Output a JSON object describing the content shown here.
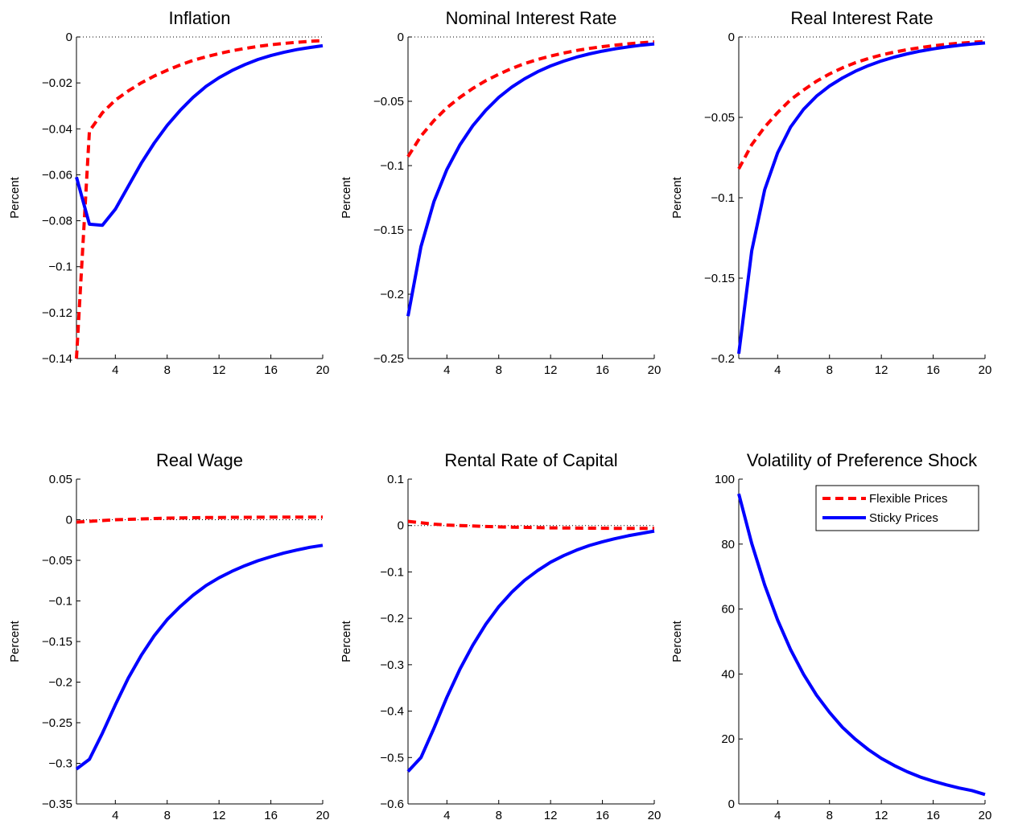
{
  "figure": {
    "legend": {
      "placement": "top-right",
      "panel_index": 5,
      "entries": [
        {
          "name": "Flexible Prices",
          "color": "#ff0000",
          "style": "dashed"
        },
        {
          "name": "Sticky Prices",
          "color": "#0000ff",
          "style": "solid"
        }
      ]
    }
  },
  "chart_data": [
    {
      "type": "line",
      "title": "Inflation",
      "xlabel": "",
      "ylabel": "Percent",
      "xlim": [
        1,
        20
      ],
      "ylim": [
        -0.14,
        0
      ],
      "xticks": [
        4,
        8,
        12,
        16,
        20
      ],
      "xtick_labels": [
        "4",
        "8",
        "12",
        "16",
        "20"
      ],
      "yticks": [
        0,
        -0.02,
        -0.04,
        -0.06,
        -0.08,
        -0.1,
        -0.12,
        -0.14
      ],
      "ytick_labels": [
        "0",
        "−0.02",
        "−0.04",
        "−0.06",
        "−0.08",
        "−0.1",
        "−0.12",
        "−0.14"
      ],
      "zero_line": true,
      "x": [
        1,
        2,
        3,
        4,
        5,
        6,
        7,
        8,
        9,
        10,
        11,
        12,
        13,
        14,
        15,
        16,
        17,
        18,
        19,
        20
      ],
      "series": [
        {
          "name": "Flexible Prices",
          "color": "#ff0000",
          "style": "dashed",
          "values": [
            -0.14,
            -0.041,
            -0.033,
            -0.0275,
            -0.0235,
            -0.02,
            -0.017,
            -0.0145,
            -0.0122,
            -0.0102,
            -0.0086,
            -0.0072,
            -0.006,
            -0.005,
            -0.0041,
            -0.0034,
            -0.0028,
            -0.0023,
            -0.0019,
            -0.0016
          ]
        },
        {
          "name": "Sticky Prices",
          "color": "#0000ff",
          "style": "solid",
          "values": [
            -0.061,
            -0.0815,
            -0.082,
            -0.075,
            -0.065,
            -0.055,
            -0.0462,
            -0.0385,
            -0.032,
            -0.0263,
            -0.0215,
            -0.0177,
            -0.0146,
            -0.012,
            -0.0098,
            -0.0081,
            -0.0067,
            -0.0055,
            -0.0046,
            -0.0038
          ]
        }
      ]
    },
    {
      "type": "line",
      "title": "Nominal Interest Rate",
      "xlabel": "",
      "ylabel": "Percent",
      "xlim": [
        1,
        20
      ],
      "ylim": [
        -0.25,
        0
      ],
      "xticks": [
        4,
        8,
        12,
        16,
        20
      ],
      "xtick_labels": [
        "4",
        "8",
        "12",
        "16",
        "20"
      ],
      "yticks": [
        0,
        -0.05,
        -0.1,
        -0.15,
        -0.2,
        -0.25
      ],
      "ytick_labels": [
        "0",
        "−0.05",
        "−0.1",
        "−0.15",
        "−0.2",
        "−0.25"
      ],
      "zero_line": true,
      "x": [
        1,
        2,
        3,
        4,
        5,
        6,
        7,
        8,
        9,
        10,
        11,
        12,
        13,
        14,
        15,
        16,
        17,
        18,
        19,
        20
      ],
      "series": [
        {
          "name": "Flexible Prices",
          "color": "#ff0000",
          "style": "dashed",
          "values": [
            -0.093,
            -0.077,
            -0.065,
            -0.055,
            -0.047,
            -0.04,
            -0.034,
            -0.029,
            -0.0245,
            -0.0207,
            -0.0175,
            -0.0148,
            -0.0125,
            -0.0105,
            -0.0089,
            -0.0075,
            -0.0063,
            -0.0053,
            -0.0045,
            -0.0038
          ]
        },
        {
          "name": "Sticky Prices",
          "color": "#0000ff",
          "style": "solid",
          "values": [
            -0.217,
            -0.163,
            -0.128,
            -0.103,
            -0.084,
            -0.069,
            -0.057,
            -0.047,
            -0.039,
            -0.0325,
            -0.027,
            -0.0225,
            -0.0188,
            -0.0157,
            -0.0131,
            -0.011,
            -0.0092,
            -0.0077,
            -0.0064,
            -0.0054
          ]
        }
      ]
    },
    {
      "type": "line",
      "title": "Real Interest Rate",
      "xlabel": "",
      "ylabel": "Percent",
      "xlim": [
        1,
        20
      ],
      "ylim": [
        -0.2,
        0
      ],
      "xticks": [
        4,
        8,
        12,
        16,
        20
      ],
      "xtick_labels": [
        "4",
        "8",
        "12",
        "16",
        "20"
      ],
      "yticks": [
        0,
        -0.05,
        -0.1,
        -0.15,
        -0.2
      ],
      "ytick_labels": [
        "0",
        "−0.05",
        "−0.1",
        "−0.15",
        "−0.2"
      ],
      "zero_line": true,
      "x": [
        1,
        2,
        3,
        4,
        5,
        6,
        7,
        8,
        9,
        10,
        11,
        12,
        13,
        14,
        15,
        16,
        17,
        18,
        19,
        20
      ],
      "series": [
        {
          "name": "Flexible Prices",
          "color": "#ff0000",
          "style": "dashed",
          "values": [
            -0.082,
            -0.067,
            -0.056,
            -0.047,
            -0.039,
            -0.033,
            -0.0275,
            -0.023,
            -0.0192,
            -0.016,
            -0.0134,
            -0.0112,
            -0.0094,
            -0.0079,
            -0.0066,
            -0.0055,
            -0.0046,
            -0.0039,
            -0.0033,
            -0.0028
          ]
        },
        {
          "name": "Sticky Prices",
          "color": "#0000ff",
          "style": "solid",
          "values": [
            -0.197,
            -0.133,
            -0.095,
            -0.072,
            -0.056,
            -0.045,
            -0.0368,
            -0.0305,
            -0.0255,
            -0.0213,
            -0.0178,
            -0.0149,
            -0.0125,
            -0.0105,
            -0.0088,
            -0.0074,
            -0.0062,
            -0.0052,
            -0.0044,
            -0.0037
          ]
        }
      ]
    },
    {
      "type": "line",
      "title": "Real Wage",
      "xlabel": "",
      "ylabel": "Percent",
      "xlim": [
        1,
        20
      ],
      "ylim": [
        -0.35,
        0.05
      ],
      "xticks": [
        4,
        8,
        12,
        16,
        20
      ],
      "xtick_labels": [
        "4",
        "8",
        "12",
        "16",
        "20"
      ],
      "yticks": [
        0.05,
        0,
        -0.05,
        -0.1,
        -0.15,
        -0.2,
        -0.25,
        -0.3,
        -0.35
      ],
      "ytick_labels": [
        "0.05",
        "0",
        "−0.05",
        "−0.1",
        "−0.15",
        "−0.2",
        "−0.25",
        "−0.3",
        "−0.35"
      ],
      "zero_line": true,
      "x": [
        1,
        2,
        3,
        4,
        5,
        6,
        7,
        8,
        9,
        10,
        11,
        12,
        13,
        14,
        15,
        16,
        17,
        18,
        19,
        20
      ],
      "series": [
        {
          "name": "Flexible Prices",
          "color": "#ff0000",
          "style": "dashed",
          "values": [
            -0.003,
            -0.002,
            -0.001,
            0,
            0.0005,
            0.001,
            0.0015,
            0.002,
            0.0022,
            0.0025,
            0.0027,
            0.0028,
            0.003,
            0.003,
            0.0031,
            0.0032,
            0.0032,
            0.0033,
            0.0033,
            0.0033
          ]
        },
        {
          "name": "Sticky Prices",
          "color": "#0000ff",
          "style": "solid",
          "values": [
            -0.307,
            -0.295,
            -0.263,
            -0.228,
            -0.195,
            -0.167,
            -0.143,
            -0.123,
            -0.107,
            -0.093,
            -0.081,
            -0.0715,
            -0.0635,
            -0.0565,
            -0.0505,
            -0.0455,
            -0.041,
            -0.0373,
            -0.034,
            -0.0315
          ]
        }
      ]
    },
    {
      "type": "line",
      "title": "Rental Rate of Capital",
      "xlabel": "",
      "ylabel": "Percent",
      "xlim": [
        1,
        20
      ],
      "ylim": [
        -0.6,
        0.1
      ],
      "xticks": [
        4,
        8,
        12,
        16,
        20
      ],
      "xtick_labels": [
        "4",
        "8",
        "12",
        "16",
        "20"
      ],
      "yticks": [
        0.1,
        0,
        -0.1,
        -0.2,
        -0.3,
        -0.4,
        -0.5,
        -0.6
      ],
      "ytick_labels": [
        "0.1",
        "0",
        "−0.1",
        "−0.2",
        "−0.3",
        "−0.4",
        "−0.5",
        "−0.6"
      ],
      "zero_line": true,
      "x": [
        1,
        2,
        3,
        4,
        5,
        6,
        7,
        8,
        9,
        10,
        11,
        12,
        13,
        14,
        15,
        16,
        17,
        18,
        19,
        20
      ],
      "series": [
        {
          "name": "Flexible Prices",
          "color": "#ff0000",
          "style": "dashed",
          "values": [
            0.009,
            0.006,
            0.003,
            0.001,
            0,
            -0.001,
            -0.002,
            -0.003,
            -0.0035,
            -0.004,
            -0.0045,
            -0.005,
            -0.0052,
            -0.0055,
            -0.0057,
            -0.0058,
            -0.006,
            -0.006,
            -0.006,
            -0.006
          ]
        },
        {
          "name": "Sticky Prices",
          "color": "#0000ff",
          "style": "solid",
          "values": [
            -0.53,
            -0.5,
            -0.437,
            -0.37,
            -0.31,
            -0.258,
            -0.213,
            -0.175,
            -0.144,
            -0.118,
            -0.097,
            -0.079,
            -0.065,
            -0.053,
            -0.043,
            -0.035,
            -0.028,
            -0.022,
            -0.017,
            -0.012
          ]
        }
      ]
    },
    {
      "type": "line",
      "title": "Volatility of Preference Shock",
      "xlabel": "",
      "ylabel": "Percent",
      "xlim": [
        1,
        20
      ],
      "ylim": [
        0,
        100
      ],
      "xticks": [
        4,
        8,
        12,
        16,
        20
      ],
      "xtick_labels": [
        "4",
        "8",
        "12",
        "16",
        "20"
      ],
      "yticks": [
        100,
        80,
        60,
        40,
        20,
        0
      ],
      "ytick_labels": [
        "100",
        "80",
        "60",
        "40",
        "20",
        "0"
      ],
      "zero_line": true,
      "x": [
        1,
        2,
        3,
        4,
        5,
        6,
        7,
        8,
        9,
        10,
        11,
        12,
        13,
        14,
        15,
        16,
        17,
        18,
        19,
        20
      ],
      "series": [
        {
          "name": "Sticky Prices",
          "color": "#0000ff",
          "style": "solid",
          "values": [
            95.5,
            80.2,
            67.4,
            56.6,
            47.5,
            39.9,
            33.5,
            28.2,
            23.6,
            19.9,
            16.7,
            14.0,
            11.8,
            9.9,
            8.3,
            7.0,
            5.9,
            4.9,
            4.1,
            2.9
          ]
        }
      ]
    }
  ]
}
